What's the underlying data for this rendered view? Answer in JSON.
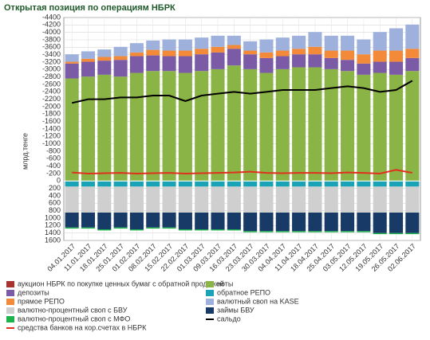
{
  "chart_data": {
    "type": "bar",
    "stacked": true,
    "title": "Открытая позиция по операциям НБРК",
    "y_label": "млрд.тенге",
    "categories": [
      "04.01.2017",
      "11.01.2017",
      "18.01.2017",
      "25.01.2017",
      "01.02.2017",
      "08.02.2017",
      "15.02.2017",
      "22.02.2017",
      "01.03.2017",
      "09.03.2017",
      "16.03.2017",
      "23.03.2017",
      "30.03.2017",
      "04.04.2017",
      "11.04.2017",
      "18.04.2017",
      "25.04.2017",
      "03.05.2017",
      "12.05.2017",
      "19.05.2017",
      "26.05.2017",
      "02.06.2017"
    ],
    "ylim": [
      1600,
      -4400
    ],
    "yticks": [
      -4400,
      -4200,
      -4000,
      -3800,
      -3600,
      -3400,
      -3200,
      -3000,
      -2800,
      -2600,
      -2400,
      -2200,
      -2000,
      -1800,
      -1600,
      -1400,
      -1200,
      -1000,
      -800,
      -600,
      -400,
      -200,
      0,
      200,
      400,
      600,
      800,
      1000,
      1200,
      1400,
      1600
    ],
    "grid": true,
    "series": [
      {
        "name": "аукцион НБРК по покупке ценных бумаг с обратной продажей",
        "color": "#a8322d",
        "values": [
          -10,
          -10,
          -10,
          -10,
          -10,
          -10,
          -10,
          -10,
          -10,
          -10,
          -10,
          -10,
          -10,
          -10,
          -10,
          -10,
          -10,
          -10,
          -10,
          -10,
          -10,
          -10
        ]
      },
      {
        "name": "ноты",
        "color": "#8bb446",
        "values": [
          -2750,
          -2800,
          -2850,
          -2800,
          -2900,
          -2950,
          -2950,
          -2900,
          -2950,
          -3000,
          -3100,
          -3000,
          -2900,
          -3000,
          -3050,
          -3050,
          -3000,
          -2950,
          -2850,
          -2900,
          -2850,
          -2950
        ]
      },
      {
        "name": "депозиты",
        "color": "#7b5aa6",
        "values": [
          -400,
          -400,
          -380,
          -450,
          -450,
          -420,
          -400,
          -450,
          -450,
          -450,
          -450,
          -400,
          -400,
          -350,
          -350,
          -350,
          -300,
          -300,
          -300,
          -300,
          -350,
          -350
        ]
      },
      {
        "name": "прямое РЕПО",
        "color": "#f28a3a",
        "values": [
          -50,
          -80,
          -100,
          -100,
          -100,
          -150,
          -150,
          -150,
          -150,
          -150,
          -100,
          -100,
          -150,
          -150,
          -150,
          -200,
          -200,
          -250,
          -250,
          -300,
          -300,
          -250
        ]
      },
      {
        "name": "валютный своп на KASE",
        "color": "#9db1dc",
        "values": [
          -200,
          -200,
          -200,
          -250,
          -250,
          -250,
          -300,
          -300,
          -300,
          -300,
          -250,
          -250,
          -350,
          -350,
          -350,
          -400,
          -400,
          -400,
          -400,
          -500,
          -600,
          -650
        ]
      },
      {
        "name": "обратное РЕПО",
        "color": "#1aa3b6",
        "values": [
          150,
          150,
          150,
          150,
          150,
          150,
          150,
          150,
          150,
          150,
          150,
          150,
          150,
          150,
          150,
          150,
          150,
          150,
          150,
          150,
          150,
          150
        ]
      },
      {
        "name": "валютно-процентный своп с БВУ",
        "color": "#cfcfcf",
        "values": [
          700,
          700,
          700,
          700,
          700,
          700,
          700,
          700,
          700,
          700,
          700,
          700,
          700,
          700,
          700,
          700,
          700,
          700,
          700,
          700,
          700,
          700
        ]
      },
      {
        "name": "займы БВУ",
        "color": "#173a66",
        "values": [
          400,
          400,
          450,
          400,
          450,
          400,
          400,
          450,
          450,
          450,
          450,
          500,
          500,
          500,
          500,
          500,
          500,
          500,
          500,
          550,
          550,
          550
        ]
      },
      {
        "name": "валютно-процентный своп с МФО",
        "color": "#1db34b",
        "values": [
          30,
          30,
          30,
          30,
          30,
          30,
          30,
          30,
          30,
          30,
          30,
          30,
          30,
          30,
          30,
          30,
          30,
          30,
          30,
          30,
          30,
          30
        ]
      },
      {
        "name": "средства банков на кор.счетах в НБРК",
        "color": "#e0301e",
        "type": "line",
        "values": [
          -230,
          -200,
          -210,
          -220,
          -200,
          -210,
          -220,
          -200,
          -210,
          -220,
          -230,
          -250,
          -220,
          -210,
          -220,
          -220,
          -210,
          -230,
          -220,
          -200,
          -300,
          -220
        ]
      },
      {
        "name": "сальдо",
        "color": "#000000",
        "type": "line",
        "values": [
          -2100,
          -2200,
          -2200,
          -2250,
          -2250,
          -2300,
          -2300,
          -2150,
          -2300,
          -2350,
          -2400,
          -2350,
          -2400,
          -2450,
          -2450,
          -2450,
          -2500,
          -2550,
          -2500,
          -2400,
          -2450,
          -2700
        ]
      }
    ]
  }
}
